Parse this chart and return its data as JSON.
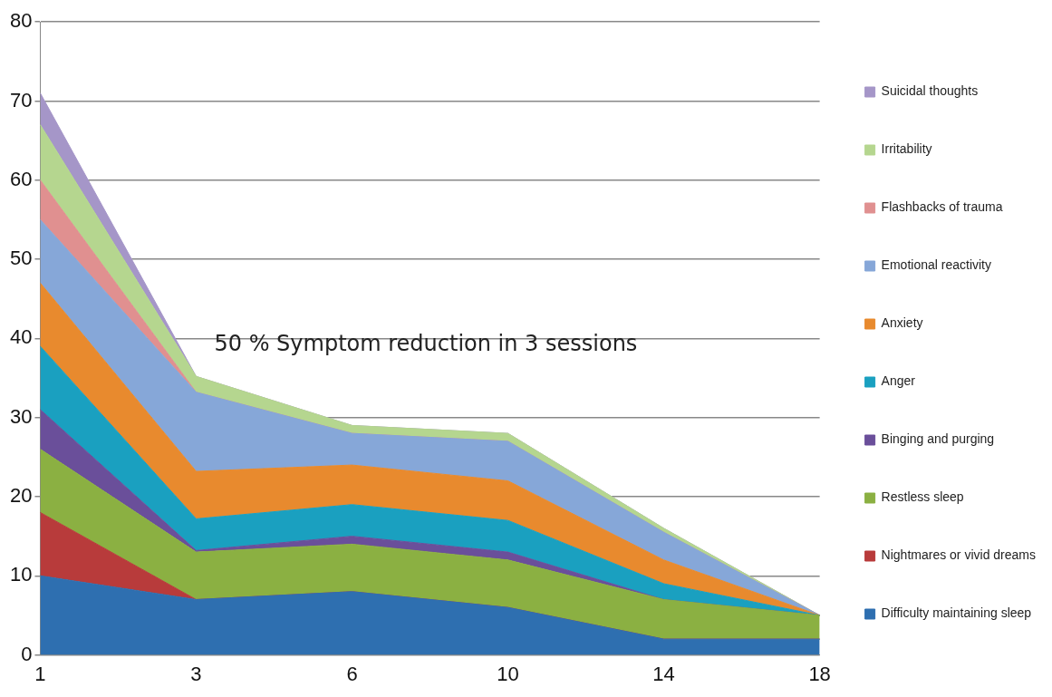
{
  "chart_data": {
    "type": "area",
    "stacked": true,
    "categories": [
      "1",
      "3",
      "6",
      "10",
      "14",
      "18"
    ],
    "series": [
      {
        "name": "Difficulty maintaining sleep",
        "color": "#2e6fb0",
        "values": [
          10,
          7,
          8,
          6,
          2,
          2
        ]
      },
      {
        "name": "Nightmares or vivid dreams",
        "color": "#b83b3b",
        "values": [
          8,
          0,
          0,
          0,
          0,
          0
        ]
      },
      {
        "name": "Restless sleep",
        "color": "#8bb042",
        "values": [
          8,
          6,
          6,
          6,
          5,
          3
        ]
      },
      {
        "name": "Binging and purging",
        "color": "#6a4f9a",
        "values": [
          5,
          0.2,
          1,
          1,
          0,
          0
        ]
      },
      {
        "name": "Anger",
        "color": "#1aa0c0",
        "values": [
          8,
          4,
          4,
          4,
          2,
          0
        ]
      },
      {
        "name": "Anxiety",
        "color": "#e88a2e",
        "values": [
          8,
          6,
          5,
          5,
          3,
          0
        ]
      },
      {
        "name": "Emotional reactivity",
        "color": "#86a7d8",
        "values": [
          8,
          10,
          4,
          5,
          3.5,
          0
        ]
      },
      {
        "name": "Flashbacks of trauma",
        "color": "#e09090",
        "values": [
          5,
          0,
          0,
          0,
          0,
          0
        ]
      },
      {
        "name": "Irritability",
        "color": "#b5d68f",
        "values": [
          7,
          2,
          1,
          1,
          0.5,
          0
        ]
      },
      {
        "name": "Suicidal thoughts",
        "color": "#a596c8",
        "values": [
          4,
          0,
          0,
          0,
          0,
          0
        ]
      }
    ],
    "ylim": [
      0,
      80
    ],
    "yticks": [
      0,
      10,
      20,
      30,
      40,
      50,
      60,
      70,
      80
    ],
    "grid": "y",
    "legend": "right",
    "annotations": [
      "50 % Symptom reduction in 3 sessions"
    ]
  }
}
